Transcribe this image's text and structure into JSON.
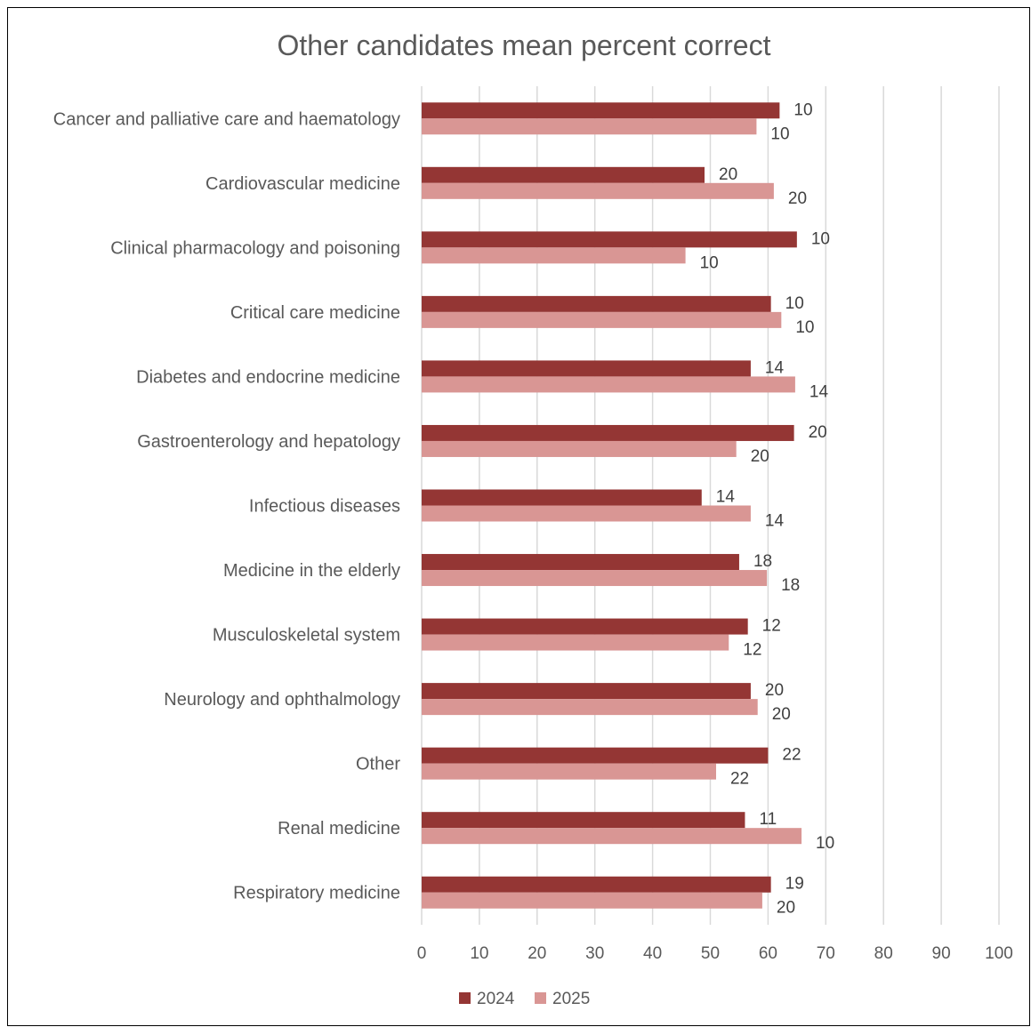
{
  "chart_data": {
    "type": "bar",
    "orientation": "horizontal",
    "title": "Other candidates mean percent correct",
    "xlabel": "",
    "ylabel": "",
    "xlim": [
      0,
      100
    ],
    "ticks": [
      "0",
      "10",
      "20",
      "30",
      "40",
      "50",
      "60",
      "70",
      "80",
      "90",
      "100"
    ],
    "grid": true,
    "legend_position": "bottom",
    "categories": [
      "Cancer and palliative care and haematology",
      "Cardiovascular medicine",
      "Clinical pharmacology and poisoning",
      "Critical care medicine",
      "Diabetes and endocrine medicine",
      "Gastroenterology and hepatology",
      "Infectious diseases",
      "Medicine in the elderly",
      "Musculoskeletal system",
      "Neurology and ophthalmology",
      "Other",
      "Renal medicine",
      "Respiratory medicine"
    ],
    "series": [
      {
        "name": "2024",
        "color": "#943634",
        "values": [
          62,
          49,
          65,
          60.5,
          57,
          64.5,
          48.5,
          55,
          56.5,
          57,
          60,
          56,
          60.5
        ],
        "labels": [
          "10",
          "20",
          "10",
          "10",
          "14",
          "20",
          "14",
          "18",
          "12",
          "20",
          "22",
          "11",
          "19"
        ]
      },
      {
        "name": "2025",
        "color": "#d99694",
        "values": [
          58,
          61,
          45.7,
          62.3,
          64.7,
          54.5,
          57,
          59.8,
          53.2,
          58.2,
          51,
          65.8,
          59
        ],
        "labels": [
          "10",
          "20",
          "10",
          "10",
          "14",
          "20",
          "14",
          "18",
          "12",
          "20",
          "22",
          "10",
          "20"
        ]
      }
    ]
  }
}
